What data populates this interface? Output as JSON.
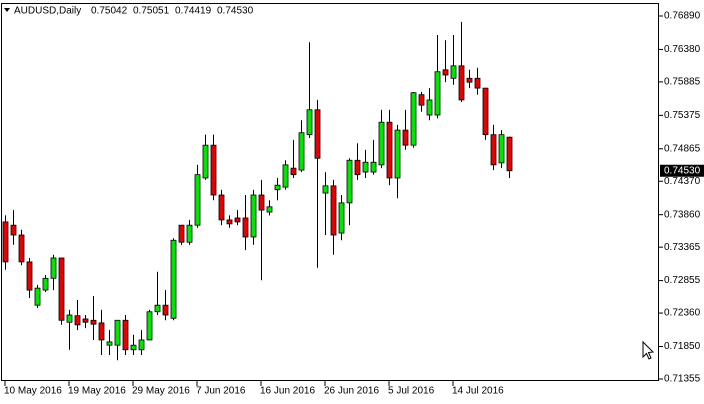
{
  "chart_data": {
    "type": "candlestick",
    "title": "AUDUSD,Daily",
    "last_bar_labels": [
      "0.75042",
      "0.75051",
      "0.74419",
      "0.74530"
    ],
    "categories": [
      "10 May 2016",
      null,
      null,
      null,
      null,
      null,
      null,
      null,
      "19 May 2016",
      null,
      null,
      null,
      null,
      null,
      null,
      null,
      "29 May 2016",
      null,
      null,
      null,
      null,
      null,
      null,
      null,
      "7 Jun 2016",
      null,
      null,
      null,
      null,
      null,
      null,
      null,
      "16 Jun 2016",
      null,
      null,
      null,
      null,
      null,
      null,
      null,
      "26 Jun 2016",
      null,
      null,
      null,
      null,
      null,
      null,
      null,
      "5 Jul 2016",
      null,
      null,
      null,
      null,
      null,
      null,
      null,
      "14 Jul 2016",
      null,
      null,
      null,
      null,
      null,
      null,
      null
    ],
    "open": [
      0.7375,
      0.737,
      0.7355,
      0.7314,
      0.7248,
      0.7271,
      0.7289,
      0.732,
      0.7222,
      0.7232,
      0.7227,
      0.7225,
      0.7221,
      0.7187,
      0.7187,
      0.7225,
      0.718,
      0.718,
      0.7195,
      0.7238,
      0.7248,
      0.7228,
      0.737,
      0.7344,
      0.737,
      0.7442,
      0.7492,
      0.7416,
      0.7378,
      0.7381,
      0.7381,
      0.7352,
      0.7416,
      0.739,
      0.7424,
      0.7428,
      0.7457,
      0.7454,
      0.7508,
      0.7546,
      0.7419,
      0.743,
      0.7358,
      0.7404,
      0.7469,
      0.7451,
      0.7451,
      0.7462,
      0.7527,
      0.7442,
      0.7515,
      0.7492,
      0.7569,
      0.7538,
      0.7538,
      0.7607,
      0.7594,
      0.7613,
      0.7594,
      0.7594,
      0.7579,
      0.7508,
      0.7465,
      0.75042
    ],
    "high": [
      0.7385,
      0.7393,
      0.7363,
      0.732,
      0.7279,
      0.7294,
      0.7325,
      0.732,
      0.7241,
      0.7256,
      0.7233,
      0.7262,
      0.7241,
      0.721,
      0.7225,
      0.7233,
      0.7203,
      0.721,
      0.7241,
      0.7299,
      0.7271,
      0.735,
      0.737,
      0.7378,
      0.7462,
      0.7508,
      0.7508,
      0.7424,
      0.7385,
      0.7393,
      0.7416,
      0.7424,
      0.7439,
      0.7408,
      0.7442,
      0.7469,
      0.75,
      0.753,
      0.7649,
      0.7561,
      0.7451,
      0.7439,
      0.7416,
      0.7472,
      0.7495,
      0.7485,
      0.75,
      0.7546,
      0.7546,
      0.7523,
      0.7546,
      0.7573,
      0.7573,
      0.7579,
      0.766,
      0.7652,
      0.766,
      0.768,
      0.7607,
      0.761,
      0.7579,
      0.7523,
      0.7515,
      0.75051
    ],
    "low": [
      0.7302,
      0.734,
      0.7309,
      0.7259,
      0.7244,
      0.7268,
      0.7271,
      0.7218,
      0.718,
      0.721,
      0.7213,
      0.7195,
      0.7172,
      0.7172,
      0.7164,
      0.7172,
      0.7172,
      0.7172,
      0.7195,
      0.7233,
      0.7225,
      0.7225,
      0.734,
      0.734,
      0.7366,
      0.7439,
      0.7408,
      0.737,
      0.7366,
      0.737,
      0.7332,
      0.734,
      0.7286,
      0.7385,
      0.7408,
      0.7424,
      0.7442,
      0.7451,
      0.7503,
      0.7305,
      0.7355,
      0.7325,
      0.7347,
      0.737,
      0.7439,
      0.7442,
      0.7447,
      0.7457,
      0.7431,
      0.7411,
      0.7485,
      0.7488,
      0.7543,
      0.753,
      0.7533,
      0.7588,
      0.7584,
      0.7558,
      0.7579,
      0.7569,
      0.75,
      0.7454,
      0.7457,
      0.74419
    ],
    "close": [
      0.7314,
      0.7355,
      0.7314,
      0.7271,
      0.7274,
      0.7289,
      0.732,
      0.7225,
      0.7233,
      0.7218,
      0.7222,
      0.7219,
      0.7195,
      0.7192,
      0.7225,
      0.718,
      0.7187,
      0.7195,
      0.7238,
      0.7248,
      0.7233,
      0.7347,
      0.7344,
      0.737,
      0.7447,
      0.7492,
      0.7416,
      0.7378,
      0.7372,
      0.7375,
      0.7352,
      0.7416,
      0.7393,
      0.7398,
      0.7431,
      0.7462,
      0.7447,
      0.7511,
      0.7546,
      0.7472,
      0.743,
      0.7355,
      0.7404,
      0.7469,
      0.7447,
      0.7466,
      0.7466,
      0.7527,
      0.7442,
      0.7515,
      0.7492,
      0.7572,
      0.7553,
      0.7561,
      0.7604,
      0.7599,
      0.7613,
      0.7561,
      0.7588,
      0.7579,
      0.7508,
      0.7462,
      0.7508,
      0.7453
    ],
    "up_color": "#00e600",
    "down_color": "#e60000",
    "current_price": {
      "value": 0.7453,
      "label": "0.74530"
    },
    "ylim": [
      0.71324,
      0.77088
    ],
    "yticks": [
      {
        "value": 0.7689,
        "label": "0.76890"
      },
      {
        "value": 0.7638,
        "label": "0.76380"
      },
      {
        "value": 0.75885,
        "label": "0.75885"
      },
      {
        "value": 0.75375,
        "label": "0.75375"
      },
      {
        "value": 0.74865,
        "label": "0.74865"
      },
      {
        "value": 0.7437,
        "label": "0.74370"
      },
      {
        "value": 0.7386,
        "label": "0.73860"
      },
      {
        "value": 0.73365,
        "label": "0.73365"
      },
      {
        "value": 0.72855,
        "label": "0.72855"
      },
      {
        "value": 0.7236,
        "label": "0.72360"
      },
      {
        "value": 0.7185,
        "label": "0.71850"
      },
      {
        "value": 0.71355,
        "label": "0.71355"
      }
    ]
  }
}
